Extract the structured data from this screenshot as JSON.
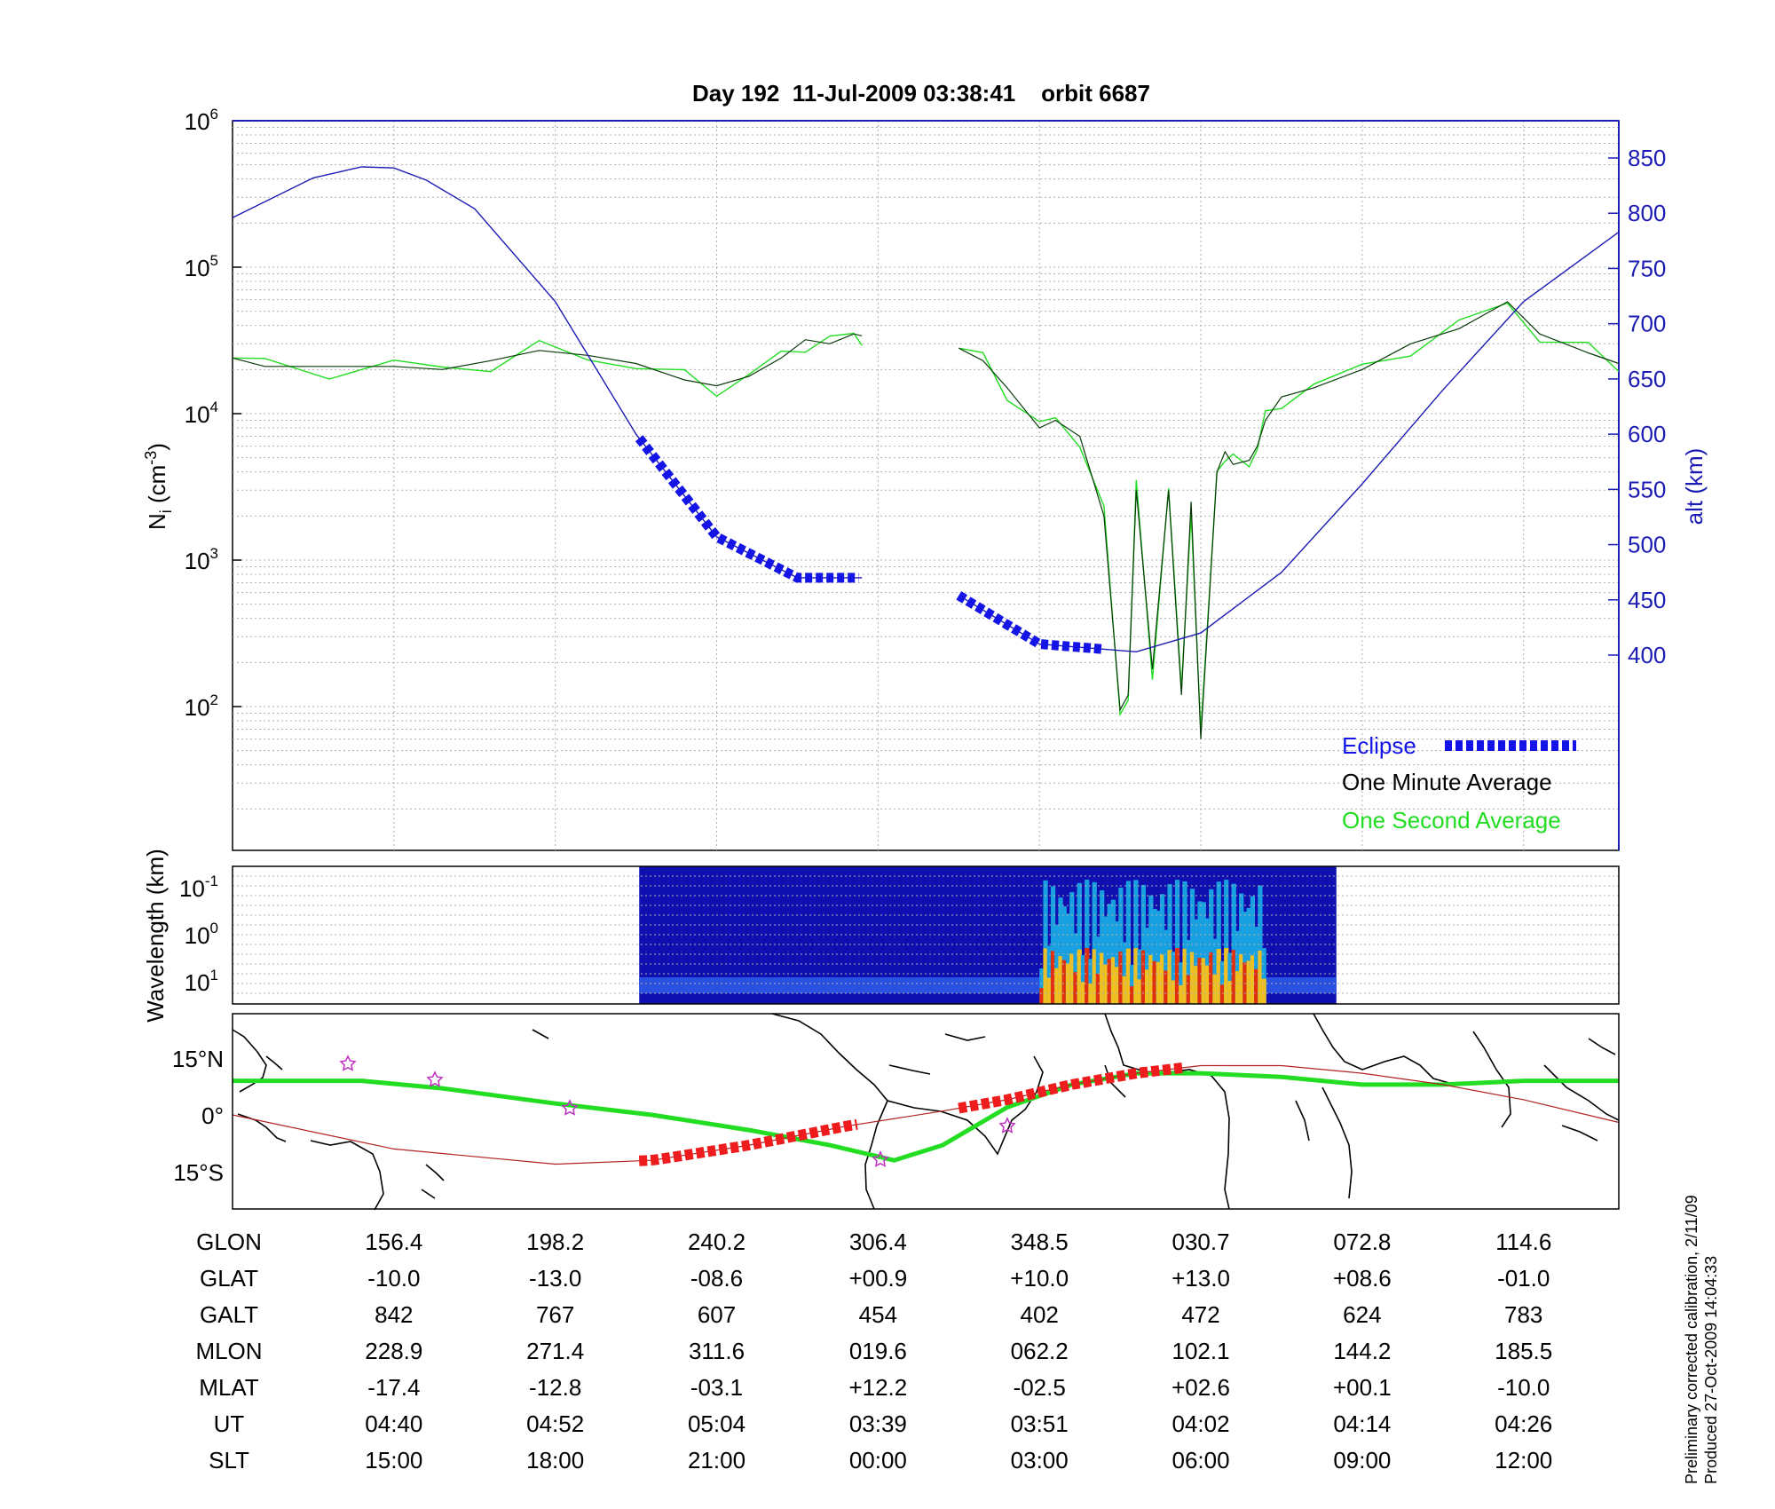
{
  "title": "Day 192  11-Jul-2009 03:38:41    orbit 6687",
  "colors": {
    "altitude": "#1c1cb4",
    "eclipse": "#1414e6",
    "minute_avg": "#0a3a0a",
    "second_avg": "#22dd22",
    "ground_track": "#22dd22",
    "mag_equator": "#b22222",
    "track_eclipse": "#ee1c1c",
    "right_axis": "#1c1cb4"
  },
  "legend": {
    "eclipse": "Eclipse",
    "minute": "One Minute Average",
    "second": "One Second Average"
  },
  "footer_note": {
    "line1": "Preliminary corrected calibration, 2/11/09",
    "line2": "Produced 27-Oct-2009 14:04:33"
  },
  "chart_data": [
    {
      "type": "line",
      "name": "density_altitude_panel",
      "title": "Day 192  11-Jul-2009 03:38:41    orbit 6687",
      "ylabel_left": "N_i (cm^-3)",
      "ylabel_right": "alt (km)",
      "y_left_scale": "log",
      "ylim_left": [
        10,
        1000000
      ],
      "left_ticks": [
        {
          "base": "10",
          "exp": "2"
        },
        {
          "base": "10",
          "exp": "3"
        },
        {
          "base": "10",
          "exp": "4"
        },
        {
          "base": "10",
          "exp": "5"
        },
        {
          "base": "10",
          "exp": "6"
        }
      ],
      "ylim_right": [
        375,
        875
      ],
      "right_ticks": [
        "400",
        "450",
        "500",
        "550",
        "600",
        "650",
        "700",
        "750",
        "800",
        "850"
      ],
      "x_index_range": [
        0,
        8.59
      ],
      "grid": true,
      "legend_position": "bottom-right",
      "series": [
        {
          "name": "One Minute Average",
          "x": [
            0,
            0.2,
            0.6,
            1.0,
            1.3,
            1.6,
            1.9,
            2.2,
            2.5,
            2.8,
            3.0,
            3.2,
            3.4,
            3.55,
            3.7,
            3.85,
            3.9
          ],
          "y": [
            24000,
            21000,
            21000,
            21000,
            20000,
            23000,
            27000,
            25000,
            22000,
            17000,
            15500,
            18000,
            24000,
            32000,
            30000,
            35000,
            34000
          ]
        },
        {
          "name": "One Minute Average",
          "x": [
            4.5,
            4.65,
            4.8,
            5.0,
            5.1,
            5.25,
            5.4,
            5.5,
            5.55,
            5.6,
            5.7,
            5.8,
            5.88,
            5.94,
            6.0,
            6.1,
            6.15,
            6.2,
            6.3,
            6.35,
            6.4,
            6.5,
            6.7,
            7.0,
            7.3,
            7.6,
            7.9,
            8.1,
            8.4,
            8.59
          ],
          "y": [
            28000,
            23000,
            15000,
            8000,
            9000,
            7000,
            2000,
            95,
            120,
            3000,
            180,
            3000,
            120,
            2500,
            60,
            4000,
            5500,
            4500,
            4800,
            6000,
            9000,
            13000,
            15000,
            20000,
            30000,
            38000,
            58000,
            35000,
            26000,
            22000
          ]
        },
        {
          "name": "Altitude",
          "axis": "right",
          "x": [
            0,
            0.5,
            0.8,
            1.0,
            1.2,
            1.5,
            2.0,
            2.5,
            3.0,
            3.5,
            3.9
          ],
          "y": [
            796,
            832,
            842,
            841,
            830,
            804,
            720,
            600,
            507,
            470,
            470
          ]
        },
        {
          "name": "Altitude",
          "axis": "right",
          "x": [
            4.5,
            5.0,
            5.6,
            6.0,
            6.5,
            7.0,
            7.5,
            8.0,
            8.59
          ],
          "y": [
            454,
            410,
            403,
            420,
            475,
            555,
            640,
            720,
            783
          ]
        }
      ],
      "eclipse_segments": [
        {
          "x": [
            2.52,
            3.9
          ]
        },
        {
          "x": [
            4.5,
            5.4
          ]
        }
      ]
    },
    {
      "type": "heatmap",
      "name": "wavelength_spectrogram",
      "ylabel": "Wavelength (km)",
      "y_scale": "log",
      "ticks": [
        {
          "base": "10",
          "exp": "-1"
        },
        {
          "base": "10",
          "exp": "0"
        },
        {
          "base": "10",
          "exp": "1"
        }
      ],
      "data_extent_x": [
        2.52,
        6.84
      ],
      "intense_regions_x": [
        [
          5.0,
          6.4
        ]
      ]
    },
    {
      "type": "line",
      "name": "ground_track_map",
      "lat_ticks": [
        "15°N",
        "0°",
        "15°S"
      ],
      "series": [
        {
          "name": "Ground track",
          "x": [
            0,
            0.8,
            1.3,
            2.0,
            2.6,
            3.2,
            3.7,
            4.1,
            4.4,
            4.8,
            5.2,
            5.6,
            6.0,
            6.5,
            7.0,
            7.5,
            8.0,
            8.59
          ],
          "y": [
            9,
            9,
            7,
            3,
            0,
            -4,
            -8,
            -12,
            -8,
            2,
            8,
            11,
            11,
            10,
            8,
            8,
            9,
            9
          ]
        },
        {
          "name": "Magnetic equator",
          "x": [
            0,
            1.0,
            2.0,
            2.6,
            3.2,
            3.8,
            4.4,
            4.8,
            5.2,
            5.6,
            6.0,
            6.5,
            7.0,
            7.5,
            8.0,
            8.59
          ],
          "y": [
            0,
            -9,
            -13,
            -12,
            -8,
            -3,
            1,
            4,
            8,
            11,
            13,
            13,
            11,
            8,
            4,
            -2
          ]
        }
      ],
      "eclipse_segments": [
        {
          "x": [
            2.52,
            3.9
          ]
        },
        {
          "x": [
            4.5,
            5.9
          ]
        }
      ]
    }
  ],
  "table": {
    "row_labels": [
      "GLON",
      "GLAT",
      "GALT",
      "MLON",
      "MLAT",
      "UT",
      "SLT"
    ],
    "columns": [
      [
        "156.4",
        "-10.0",
        "842",
        "228.9",
        "-17.4",
        "04:40",
        "15:00"
      ],
      [
        "198.2",
        "-13.0",
        "767",
        "271.4",
        "-12.8",
        "04:52",
        "18:00"
      ],
      [
        "240.2",
        "-08.6",
        "607",
        "311.6",
        "-03.1",
        "05:04",
        "21:00"
      ],
      [
        "306.4",
        "+00.9",
        "454",
        "019.6",
        "+12.2",
        "03:39",
        "00:00"
      ],
      [
        "348.5",
        "+10.0",
        "402",
        "062.2",
        "-02.5",
        "03:51",
        "03:00"
      ],
      [
        "030.7",
        "+13.0",
        "472",
        "102.1",
        "+02.6",
        "04:02",
        "06:00"
      ],
      [
        "072.8",
        "+08.6",
        "624",
        "144.2",
        "+00.1",
        "04:14",
        "09:00"
      ],
      [
        "114.6",
        "-01.0",
        "783",
        "185.5",
        "-10.0",
        "04:26",
        "12:00"
      ]
    ]
  }
}
